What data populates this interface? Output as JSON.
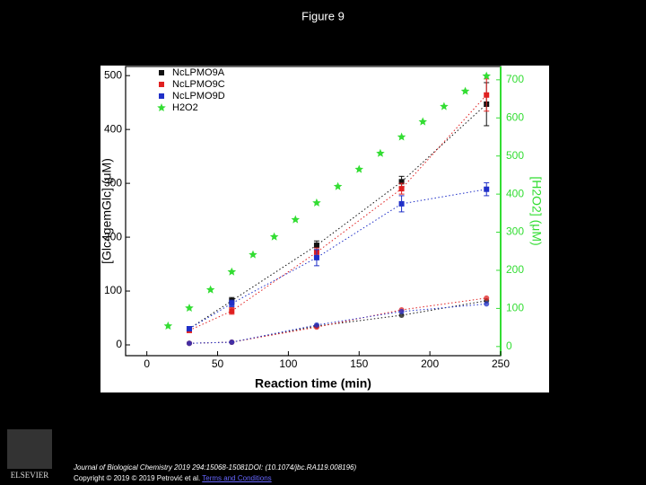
{
  "page_title": "Figure 9",
  "chart_data": {
    "type": "scatter",
    "xlabel": "Reaction time (min)",
    "ylabel": "[Glc4gemGlc] (μM)",
    "y2label": "[H2O2] (μM)",
    "xlim": [
      -15,
      250
    ],
    "xticks": [
      0,
      50,
      100,
      150,
      200,
      250
    ],
    "ylim": [
      -20,
      517
    ],
    "yticks": [
      0,
      100,
      200,
      300,
      400,
      500
    ],
    "y2lim": [
      -24,
      735
    ],
    "y2ticks": [
      0,
      100,
      200,
      300,
      400,
      500,
      600,
      700
    ],
    "legend": "upper left",
    "series": [
      {
        "name": "NcLPMO9A",
        "color": "#111111",
        "marker": "square",
        "x": [
          30,
          60,
          120,
          180,
          240
        ],
        "values": [
          30,
          82,
          185,
          303,
          447
        ],
        "errors": [
          4,
          6,
          8,
          10,
          40
        ],
        "low_values": [
          3,
          5,
          35,
          55,
          82
        ]
      },
      {
        "name": "NcLPMO9C",
        "color": "#e02020",
        "marker": "square",
        "x": [
          30,
          60,
          120,
          180,
          240
        ],
        "values": [
          27,
          63,
          172,
          290,
          464
        ],
        "errors": [
          4,
          6,
          8,
          10,
          30
        ],
        "low_values": [
          3,
          5,
          33,
          65,
          87
        ]
      },
      {
        "name": "NcLPMO9D",
        "color": "#2030c8",
        "marker": "square",
        "x": [
          30,
          60,
          120,
          180,
          240
        ],
        "values": [
          30,
          77,
          162,
          262,
          289
        ],
        "errors": [
          4,
          6,
          15,
          15,
          12
        ],
        "low_values": [
          3,
          5,
          37,
          62,
          76
        ]
      },
      {
        "name": "H2O2",
        "color": "#33dd33",
        "marker": "star",
        "axis": "y2",
        "x": [
          15,
          30,
          45,
          60,
          75,
          90,
          105,
          120,
          135,
          150,
          165,
          180,
          195,
          210,
          225,
          240
        ],
        "values": [
          54,
          101,
          149,
          196,
          241,
          288,
          333,
          377,
          420,
          465,
          507,
          550,
          590,
          630,
          670,
          710
        ]
      }
    ]
  },
  "footer": {
    "journal": "Journal of Biological Chemistry 2019 294:15068-15081DOI: (10.1074/jbc.RA119.008196)",
    "copyright": "Copyright © 2019 © 2019 Petrović et al.",
    "link": "Terms and Conditions",
    "logo": "ELSEVIER"
  }
}
